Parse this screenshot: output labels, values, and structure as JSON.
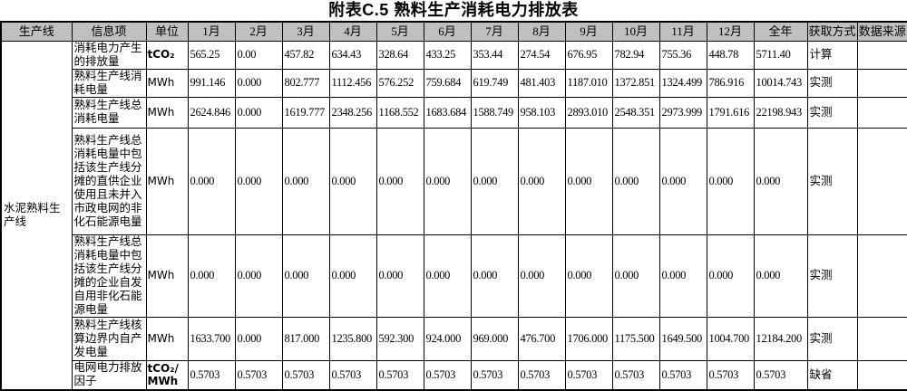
{
  "title": "附表C.5 熟料生产消耗电力排放表",
  "table": {
    "production_line": "水泥熟料生产线",
    "headers": [
      "生产线",
      "信息项",
      "单位",
      "1月",
      "2月",
      "3月",
      "4月",
      "5月",
      "6月",
      "7月",
      "8月",
      "9月",
      "10月",
      "11月",
      "12月",
      "全年",
      "获取方式",
      "数据来源"
    ],
    "rows": [
      {
        "item": "消耗电力产生的排放量",
        "unit": "tCO₂",
        "values": [
          "565.25",
          "0.00",
          "457.82",
          "634.43",
          "328.64",
          "433.25",
          "353.44",
          "274.54",
          "676.95",
          "782.94",
          "755.36",
          "448.78"
        ],
        "annual": "5711.40",
        "method": "计算",
        "source": ""
      },
      {
        "item": "熟料生产线消耗电量",
        "unit": "MWh",
        "values": [
          "991.146",
          "0.000",
          "802.777",
          "1112.456",
          "576.252",
          "759.684",
          "619.749",
          "481.403",
          "1187.010",
          "1372.851",
          "1324.499",
          "786.916"
        ],
        "annual": "10014.743",
        "method": "实测",
        "source": ""
      },
      {
        "item": "熟料生产线总消耗电量",
        "unit": "MWh",
        "values": [
          "2624.846",
          "0.000",
          "1619.777",
          "2348.256",
          "1168.552",
          "1683.684",
          "1588.749",
          "958.103",
          "2893.010",
          "2548.351",
          "2973.999",
          "1791.616"
        ],
        "annual": "22198.943",
        "method": "实测",
        "source": ""
      },
      {
        "item": "熟料生产线总消耗电量中包括该生产线分摊的直供企业使用且未并入市政电网的非化石能源电量",
        "unit": "MWh",
        "values": [
          "0.000",
          "0.000",
          "0.000",
          "0.000",
          "0.000",
          "0.000",
          "0.000",
          "0.000",
          "0.000",
          "0.000",
          "0.000",
          "0.000"
        ],
        "annual": "0.000",
        "method": "实测",
        "source": ""
      },
      {
        "item": "熟料生产线总消耗电量中包括该生产线分摊的企业自发自用非化石能源电量",
        "unit": "MWh",
        "values": [
          "0.000",
          "0.000",
          "0.000",
          "0.000",
          "0.000",
          "0.000",
          "0.000",
          "0.000",
          "0.000",
          "0.000",
          "0.000",
          "0.000"
        ],
        "annual": "0.000",
        "method": "实测",
        "source": ""
      },
      {
        "item": "熟料生产线核算边界内自产发电量",
        "unit": "MWh",
        "values": [
          "1633.700",
          "0.000",
          "817.000",
          "1235.800",
          "592.300",
          "924.000",
          "969.000",
          "476.700",
          "1706.000",
          "1175.500",
          "1649.500",
          "1004.700"
        ],
        "annual": "12184.200",
        "method": "实测",
        "source": ""
      },
      {
        "item": "电网电力排放因子",
        "unit": "tCO₂/MWh",
        "values": [
          "0.5703",
          "0.5703",
          "0.5703",
          "0.5703",
          "0.5703",
          "0.5703",
          "0.5703",
          "0.5703",
          "0.5703",
          "0.5703",
          "0.5703",
          "0.5703"
        ],
        "annual": "0.5703",
        "method": "缺省",
        "source": ""
      }
    ]
  }
}
